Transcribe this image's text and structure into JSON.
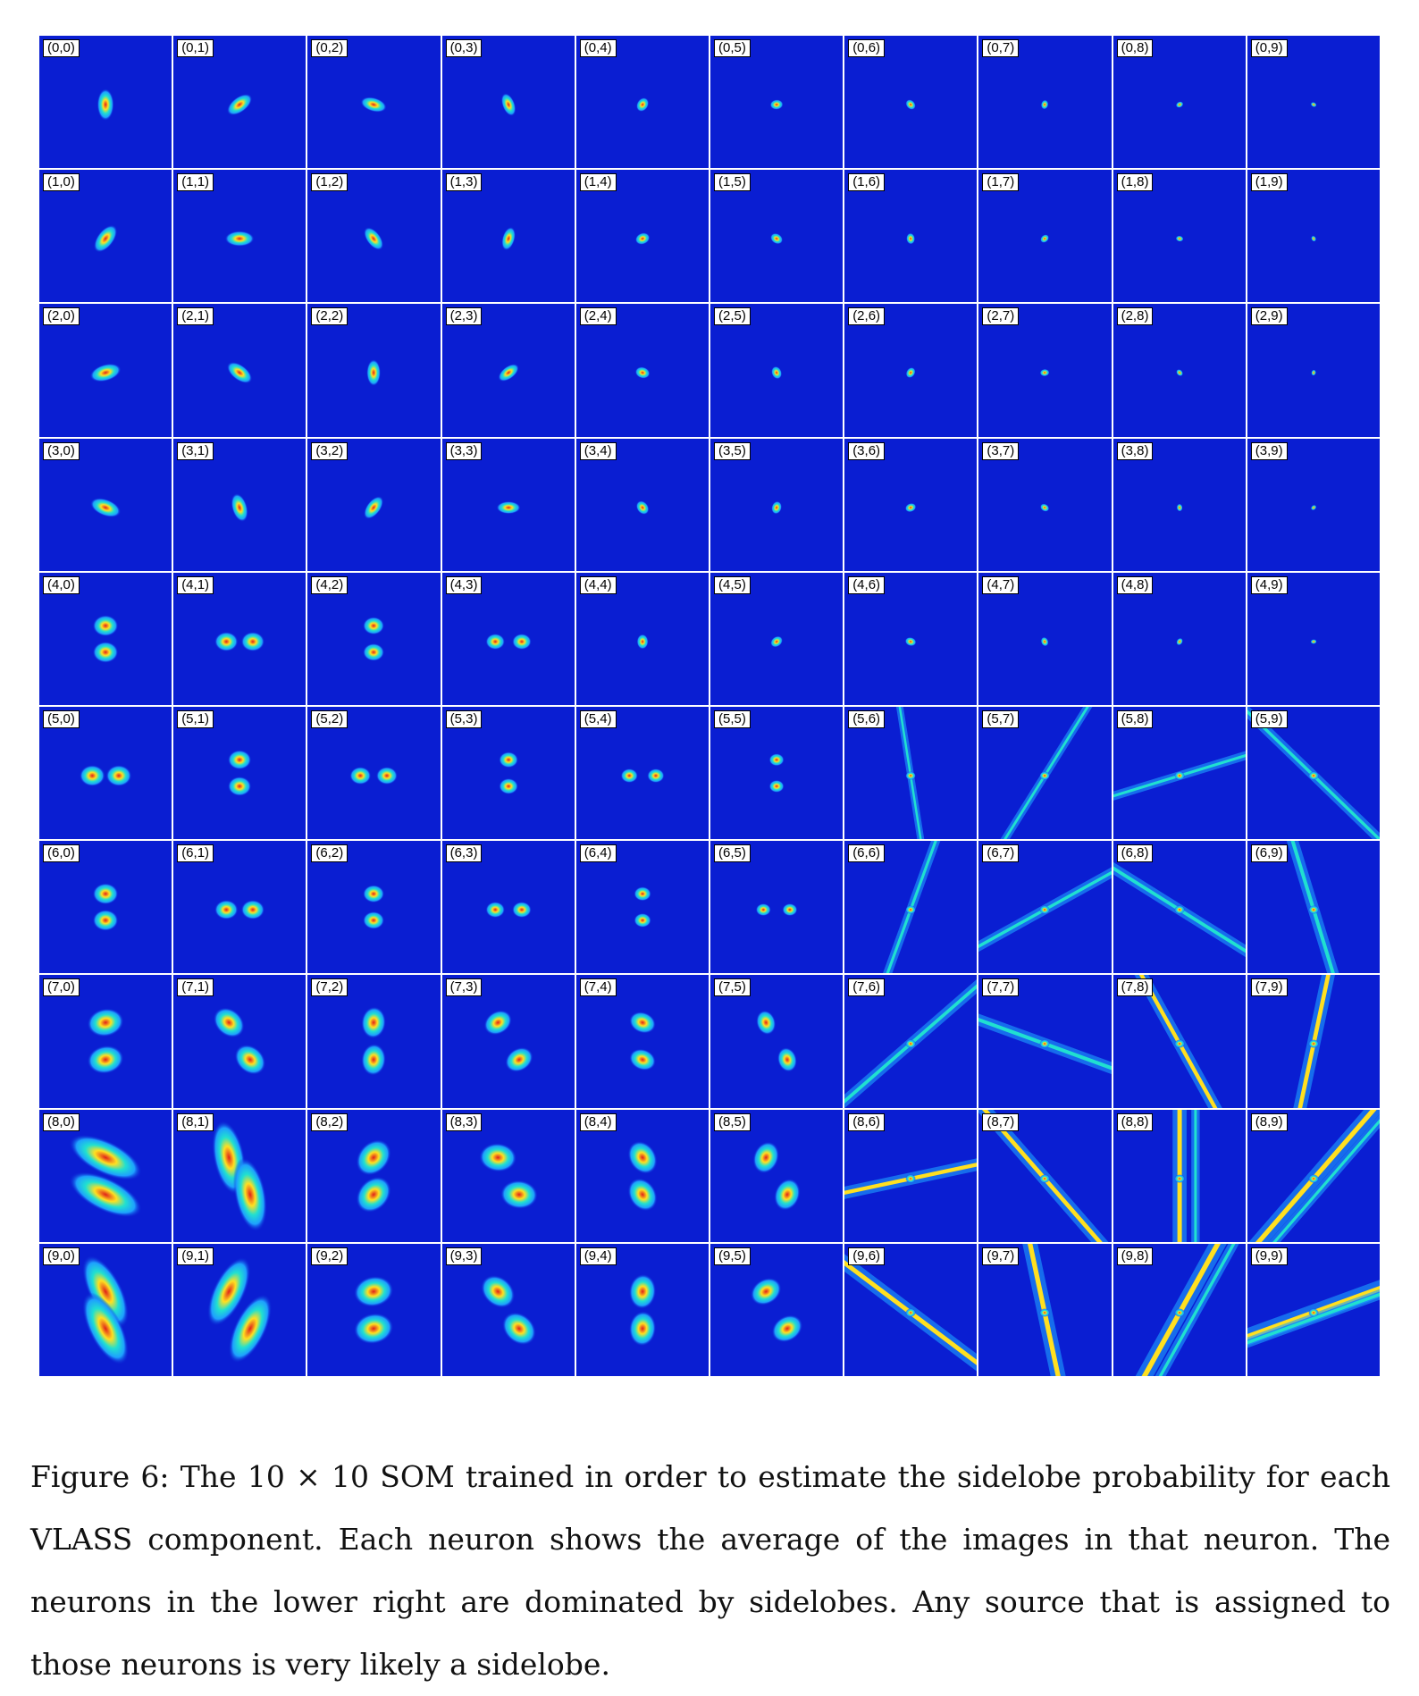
{
  "figure": {
    "caption": "Figure 6: The 10 × 10 SOM trained in order to estimate the sidelobe probability for each VLASS component. Each neuron shows the average of the images in that neuron. The neurons in the lower right are dominated by sidelobes. Any source that is assigned to those neurons is very likely a sidelobe."
  },
  "som": {
    "rows": 10,
    "cols": 10,
    "labels": [
      [
        "(0,0)",
        "(0,1)",
        "(0,2)",
        "(0,3)",
        "(0,4)",
        "(0,5)",
        "(0,6)",
        "(0,7)",
        "(0,8)",
        "(0,9)"
      ],
      [
        "(1,0)",
        "(1,1)",
        "(1,2)",
        "(1,3)",
        "(1,4)",
        "(1,5)",
        "(1,6)",
        "(1,7)",
        "(1,8)",
        "(1,9)"
      ],
      [
        "(2,0)",
        "(2,1)",
        "(2,2)",
        "(2,3)",
        "(2,4)",
        "(2,5)",
        "(2,6)",
        "(2,7)",
        "(2,8)",
        "(2,9)"
      ],
      [
        "(3,0)",
        "(3,1)",
        "(3,2)",
        "(3,3)",
        "(3,4)",
        "(3,5)",
        "(3,6)",
        "(3,7)",
        "(3,8)",
        "(3,9)"
      ],
      [
        "(4,0)",
        "(4,1)",
        "(4,2)",
        "(4,3)",
        "(4,4)",
        "(4,5)",
        "(4,6)",
        "(4,7)",
        "(4,8)",
        "(4,9)"
      ],
      [
        "(5,0)",
        "(5,1)",
        "(5,2)",
        "(5,3)",
        "(5,4)",
        "(5,5)",
        "(5,6)",
        "(5,7)",
        "(5,8)",
        "(5,9)"
      ],
      [
        "(6,0)",
        "(6,1)",
        "(6,2)",
        "(6,3)",
        "(6,4)",
        "(6,5)",
        "(6,6)",
        "(6,7)",
        "(6,8)",
        "(6,9)"
      ],
      [
        "(7,0)",
        "(7,1)",
        "(7,2)",
        "(7,3)",
        "(7,4)",
        "(7,5)",
        "(7,6)",
        "(7,7)",
        "(7,8)",
        "(7,9)"
      ],
      [
        "(8,0)",
        "(8,1)",
        "(8,2)",
        "(8,3)",
        "(8,4)",
        "(8,5)",
        "(8,6)",
        "(8,7)",
        "(8,8)",
        "(8,9)"
      ],
      [
        "(9,0)",
        "(9,1)",
        "(9,2)",
        "(9,3)",
        "(9,4)",
        "(9,5)",
        "(9,6)",
        "(9,7)",
        "(9,8)",
        "(9,9)"
      ]
    ]
  },
  "colormap": {
    "background": "#0a1ed2",
    "halo": "#1ea0ff",
    "mid": "#20e0d0",
    "warm": "#ffe020",
    "peak": "#e0201a"
  }
}
